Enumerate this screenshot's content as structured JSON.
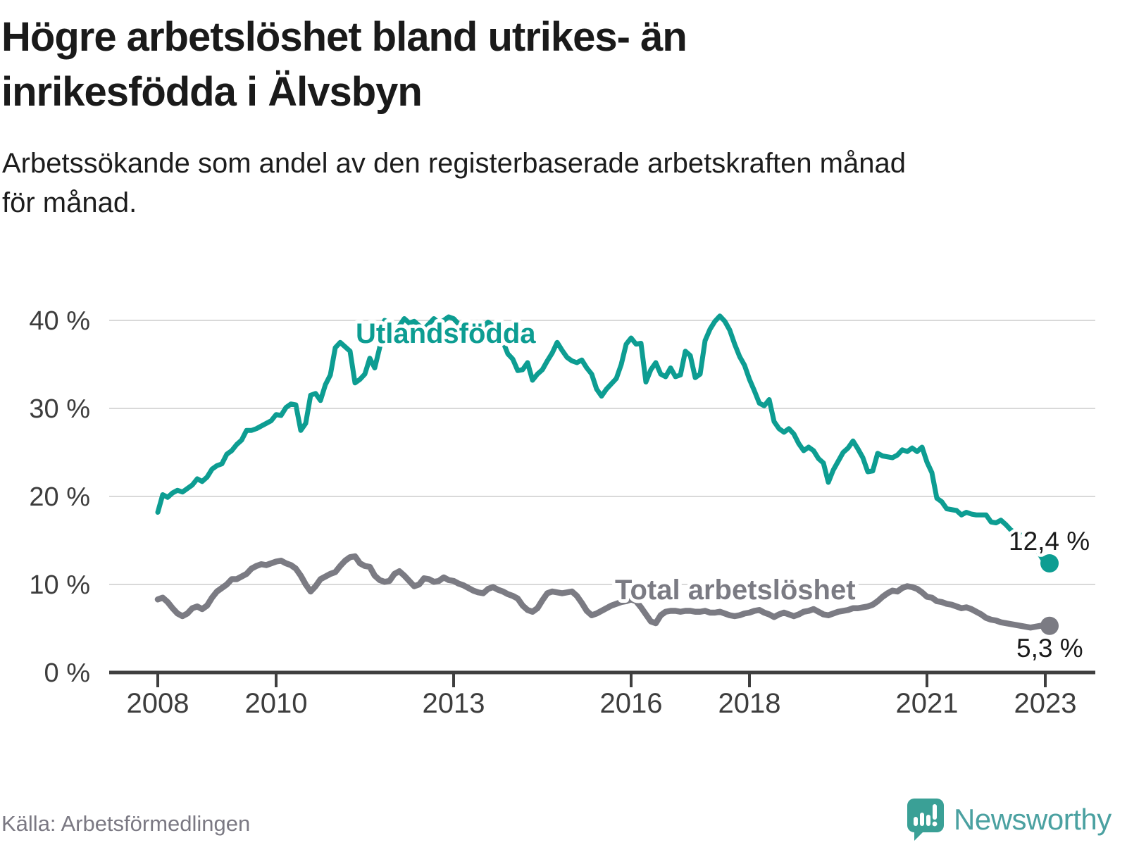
{
  "header": {
    "title_lines": [
      "Högre arbetslöshet bland utrikes- än",
      "inrikesfödda i Älvsbyn"
    ],
    "subtitle_lines": [
      "Arbetssökande som andel av den registerbaserade arbetskraften månad",
      "för månad."
    ]
  },
  "footer": {
    "source": "Källa: Arbetsförmedlingen",
    "brand": "Newsworthy"
  },
  "colors": {
    "teal": "#0d9d92",
    "gray": "#7b7b83",
    "grid": "#d9d9d9",
    "axis": "#3f3f3f",
    "tick_text": "#3d3d3d",
    "value_text": "#1a1a1a",
    "source_text": "#7b7983",
    "brand_icon": "#3aa096",
    "brand_text": "#4ba1a1"
  },
  "chart_data": {
    "type": "line",
    "frequency": "monthly",
    "x_start": "2008-01",
    "x_end": "2023-01",
    "x_ticks": [
      {
        "year": 2008,
        "label": "2008"
      },
      {
        "year": 2010,
        "label": "2010"
      },
      {
        "year": 2013,
        "label": "2013"
      },
      {
        "year": 2016,
        "label": "2016"
      },
      {
        "year": 2018,
        "label": "2018"
      },
      {
        "year": 2021,
        "label": "2021"
      },
      {
        "year": 2023,
        "label": "2023"
      }
    ],
    "y_ticks": [
      {
        "value": 0,
        "label": "0 %"
      },
      {
        "value": 10,
        "label": "10 %"
      },
      {
        "value": 20,
        "label": "20 %"
      },
      {
        "value": 30,
        "label": "30 %"
      },
      {
        "value": 40,
        "label": "40 %"
      }
    ],
    "ylim": [
      0,
      42
    ],
    "grid": "horizontal",
    "series": [
      {
        "id": "utlandsfodda",
        "name": "Utlandsfödda",
        "color": "#0d9d92",
        "end_value": 12.4,
        "end_label": "12,4 %",
        "values": [
          18.2,
          20.2,
          19.9,
          20.4,
          20.7,
          20.5,
          20.9,
          21.3,
          22.0,
          21.7,
          22.2,
          23.1,
          23.5,
          23.7,
          24.8,
          25.2,
          25.9,
          26.4,
          27.5,
          27.5,
          27.7,
          28.0,
          28.3,
          28.6,
          29.3,
          29.2,
          30.1,
          30.5,
          30.4,
          27.5,
          28.3,
          31.5,
          31.7,
          30.9,
          32.7,
          33.8,
          36.9,
          37.5,
          37.0,
          36.5,
          32.9,
          33.3,
          33.9,
          35.7,
          34.6,
          36.9,
          40.0,
          39.7,
          38.2,
          39.4,
          40.2,
          39.7,
          39.9,
          39.4,
          39.0,
          39.6,
          40.2,
          39.7,
          40.0,
          40.4,
          40.2,
          39.6,
          39.3,
          39.6,
          39.1,
          38.8,
          39.3,
          39.8,
          39.4,
          38.9,
          37.6,
          36.2,
          35.6,
          34.3,
          34.4,
          35.2,
          33.2,
          33.9,
          34.4,
          35.4,
          36.3,
          37.5,
          36.6,
          35.8,
          35.4,
          35.2,
          35.5,
          34.6,
          33.9,
          32.2,
          31.4,
          32.2,
          32.8,
          33.4,
          35.0,
          37.3,
          38.0,
          37.3,
          37.4,
          33.0,
          34.4,
          35.2,
          33.9,
          33.6,
          34.6,
          33.6,
          33.8,
          36.5,
          36.0,
          33.5,
          33.9,
          37.7,
          39.0,
          39.9,
          40.5,
          39.9,
          38.9,
          37.3,
          35.9,
          34.9,
          33.3,
          32.0,
          30.6,
          30.3,
          31.0,
          28.5,
          27.7,
          27.3,
          27.7,
          27.1,
          26.0,
          25.2,
          25.6,
          25.2,
          24.3,
          23.8,
          21.6,
          23.0,
          24.0,
          25.0,
          25.5,
          26.3,
          25.4,
          24.4,
          22.8,
          22.9,
          24.9,
          24.6,
          24.5,
          24.4,
          24.7,
          25.3,
          25.1,
          25.5,
          25.1,
          25.6,
          23.9,
          22.7,
          19.8,
          19.4,
          18.6,
          18.5,
          18.4,
          17.9,
          18.2,
          18.0,
          17.9,
          17.9,
          17.9,
          17.1,
          17.0,
          17.3,
          16.8,
          16.2,
          15.8,
          15.6,
          15.5,
          15.0,
          14.2,
          13.3,
          12.4
        ]
      },
      {
        "id": "total",
        "name": "Total arbetslöshet",
        "color": "#7b7b83",
        "end_value": 5.3,
        "end_label": "5,3 %",
        "values": [
          8.3,
          8.5,
          8.0,
          7.3,
          6.7,
          6.4,
          6.7,
          7.3,
          7.5,
          7.2,
          7.6,
          8.5,
          9.2,
          9.6,
          10.0,
          10.6,
          10.6,
          10.9,
          11.2,
          11.8,
          12.1,
          12.3,
          12.2,
          12.4,
          12.6,
          12.7,
          12.4,
          12.2,
          11.8,
          11.0,
          10.0,
          9.2,
          9.8,
          10.6,
          10.9,
          11.2,
          11.4,
          12.1,
          12.7,
          13.1,
          13.2,
          12.4,
          12.1,
          12.0,
          11.0,
          10.5,
          10.3,
          10.4,
          11.2,
          11.5,
          11.0,
          10.4,
          9.8,
          10.0,
          10.7,
          10.6,
          10.3,
          10.4,
          10.8,
          10.5,
          10.4,
          10.1,
          9.9,
          9.6,
          9.3,
          9.1,
          9.0,
          9.5,
          9.7,
          9.4,
          9.2,
          8.9,
          8.7,
          8.4,
          7.6,
          7.1,
          6.9,
          7.3,
          8.2,
          9.0,
          9.2,
          9.1,
          9.0,
          9.1,
          9.2,
          8.7,
          7.9,
          7.0,
          6.5,
          6.7,
          7.0,
          7.3,
          7.6,
          7.8,
          8.0,
          8.1,
          8.3,
          8.1,
          7.4,
          6.6,
          5.8,
          5.6,
          6.5,
          6.9,
          7.0,
          7.0,
          6.9,
          7.0,
          7.0,
          6.9,
          6.9,
          7.0,
          6.8,
          6.8,
          6.9,
          6.7,
          6.5,
          6.4,
          6.5,
          6.7,
          6.8,
          7.0,
          7.1,
          6.8,
          6.6,
          6.3,
          6.6,
          6.8,
          6.6,
          6.4,
          6.6,
          6.9,
          7.0,
          7.2,
          6.9,
          6.6,
          6.5,
          6.7,
          6.9,
          7.0,
          7.1,
          7.3,
          7.3,
          7.4,
          7.5,
          7.7,
          8.1,
          8.6,
          9.0,
          9.3,
          9.2,
          9.6,
          9.8,
          9.7,
          9.5,
          9.1,
          8.6,
          8.5,
          8.1,
          8.0,
          7.8,
          7.7,
          7.5,
          7.3,
          7.4,
          7.2,
          6.9,
          6.6,
          6.2,
          6.0,
          5.9,
          5.7,
          5.6,
          5.5,
          5.4,
          5.3,
          5.2,
          5.1,
          5.2,
          5.3,
          5.3
        ]
      }
    ]
  }
}
